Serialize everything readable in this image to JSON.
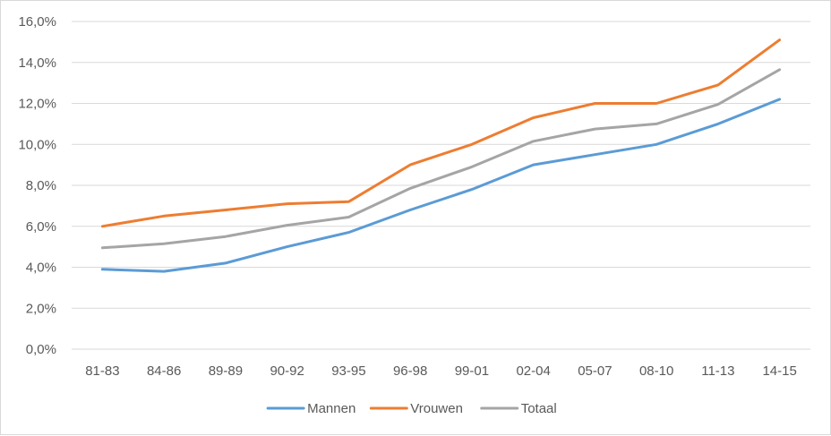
{
  "chart_data": {
    "type": "line",
    "title": "",
    "xlabel": "",
    "ylabel": "",
    "categories": [
      "81-83",
      "84-86",
      "89-89",
      "90-92",
      "93-95",
      "96-98",
      "99-01",
      "02-04",
      "05-07",
      "08-10",
      "11-13",
      "14-15"
    ],
    "series": [
      {
        "name": "Mannen",
        "color": "#5b9bd5",
        "values": [
          3.9,
          3.8,
          4.2,
          5.0,
          5.7,
          6.8,
          7.8,
          9.0,
          9.5,
          10.0,
          11.0,
          12.2
        ]
      },
      {
        "name": "Vrouwen",
        "color": "#ed7d31",
        "values": [
          6.0,
          6.5,
          6.8,
          7.1,
          7.2,
          9.0,
          10.0,
          11.3,
          12.0,
          12.0,
          12.9,
          15.1
        ]
      },
      {
        "name": "Totaal",
        "color": "#a5a5a5",
        "values": [
          4.95,
          5.15,
          5.5,
          6.05,
          6.45,
          7.85,
          8.9,
          10.15,
          10.75,
          11.0,
          11.95,
          13.65
        ]
      }
    ],
    "ylim": [
      0,
      16
    ],
    "y_ticks": [
      "0,0%",
      "2,0%",
      "4,0%",
      "6,0%",
      "8,0%",
      "10,0%",
      "12,0%",
      "14,0%",
      "16,0%"
    ],
    "y_tick_values": [
      0,
      2,
      4,
      6,
      8,
      10,
      12,
      14,
      16
    ],
    "grid": true,
    "gridline_color": "#d9d9d9",
    "legend_position": "bottom"
  }
}
